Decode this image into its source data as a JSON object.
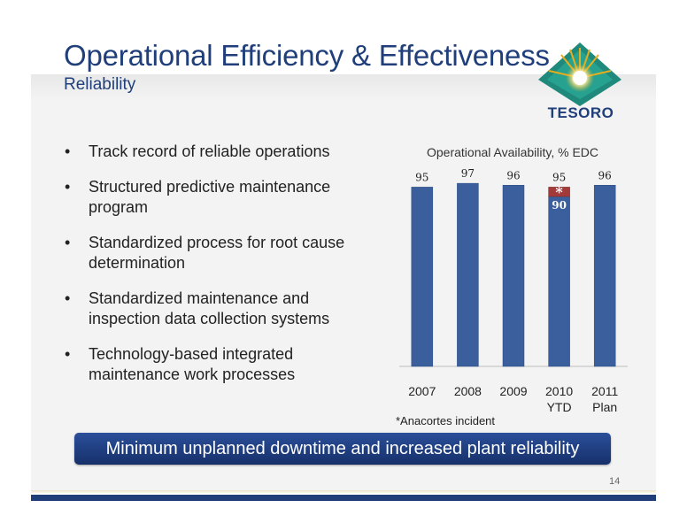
{
  "slide": {
    "title": "Operational Efficiency & Effectiveness",
    "subtitle": "Reliability",
    "logo_text": "TESORO",
    "page_number": "14",
    "callout": "Minimum unplanned downtime and increased plant reliability",
    "bullets": [
      "Track record of reliable operations",
      "Structured predictive maintenance program",
      "Standardized process for root cause determination",
      "Standardized maintenance and inspection data collection systems",
      "Technology-based integrated maintenance work processes"
    ],
    "bullet_glyph": "•",
    "footnote": "*Anacortes incident",
    "colors": {
      "title": "#1f3e7a",
      "bar": "#3a5f9c",
      "incident_bar": "#a33a3a",
      "logo_teal": "#1f8a7c",
      "logo_gold": "#e6ad1c"
    }
  },
  "chart_data": {
    "type": "bar",
    "title": "Operational Availability, % EDC",
    "categories": [
      "2007",
      "2008",
      "2009",
      "2010\nYTD",
      "2011\nPlan"
    ],
    "series": [
      {
        "values": [
          95,
          97,
          96,
          90,
          96
        ]
      },
      {
        "values": [
          0,
          0,
          0,
          5,
          0
        ],
        "segment_label": "*"
      }
    ],
    "data_labels": [
      "95",
      "97",
      "96",
      "95",
      "96"
    ],
    "inner_labels": [
      "",
      "",
      "",
      "90",
      ""
    ],
    "ylim": [
      0,
      98
    ],
    "grid": false,
    "legend": "none"
  }
}
